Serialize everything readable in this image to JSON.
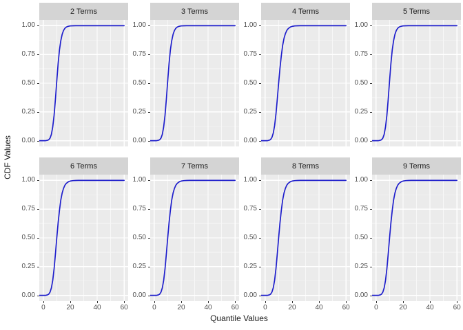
{
  "figure": {
    "y_axis_title": "CDF Values",
    "x_axis_title": "Quantile Values"
  },
  "chart_data": {
    "type": "line",
    "layout": "facet_wrap_4cols_2rows",
    "title": "",
    "xlabel": "Quantile Values",
    "ylabel": "CDF Values",
    "xlim": [
      0,
      60
    ],
    "ylim": [
      0,
      1
    ],
    "axis_expansion": 0.05,
    "grid": true,
    "legend": "none",
    "x_ticks": [
      0,
      20,
      40,
      60
    ],
    "x_tick_labels": [
      "0",
      "20",
      "40",
      "60"
    ],
    "x_minor": [
      10,
      30,
      50
    ],
    "y_ticks": [
      0,
      0.25,
      0.5,
      0.75,
      1
    ],
    "y_tick_labels": [
      "0.00",
      "0.25",
      "0.50",
      "0.75",
      "1.00"
    ],
    "y_minor": [
      0.125,
      0.375,
      0.625,
      0.875
    ],
    "colors": {
      "line": "#1e1ecc",
      "panel_bg": "#ebebeb",
      "strip_bg": "#d4d4d4",
      "grid_major": "#ffffff",
      "grid_minor": "#f7f7f7",
      "tick_text": "#4d4d4d",
      "tick_mark": "#333333",
      "title_text": "#1a1a1a"
    },
    "x": [
      0,
      1,
      2,
      3,
      4,
      5,
      6,
      7,
      8,
      9,
      10,
      11,
      12,
      13,
      14,
      15,
      16,
      17,
      18,
      19,
      20,
      22,
      24,
      26,
      28,
      30,
      35,
      40,
      45,
      50,
      55,
      60
    ],
    "series": [
      {
        "name": "2 Terms",
        "values": [
          0,
          0,
          0.001,
          0.003,
          0.008,
          0.022,
          0.055,
          0.12,
          0.22,
          0.36,
          0.52,
          0.67,
          0.79,
          0.87,
          0.925,
          0.958,
          0.977,
          0.987,
          0.993,
          0.996,
          0.998,
          0.999,
          1,
          1,
          1,
          1,
          1,
          1,
          1,
          1,
          1,
          1
        ]
      },
      {
        "name": "3 Terms",
        "values": [
          0,
          0,
          0.001,
          0.003,
          0.008,
          0.022,
          0.055,
          0.12,
          0.22,
          0.36,
          0.52,
          0.67,
          0.79,
          0.87,
          0.925,
          0.958,
          0.977,
          0.987,
          0.993,
          0.996,
          0.998,
          0.999,
          1,
          1,
          1,
          1,
          1,
          1,
          1,
          1,
          1,
          1
        ]
      },
      {
        "name": "4 Terms",
        "values": [
          0,
          0,
          0.001,
          0.004,
          0.01,
          0.028,
          0.065,
          0.13,
          0.23,
          0.36,
          0.5,
          0.63,
          0.74,
          0.83,
          0.89,
          0.93,
          0.957,
          0.973,
          0.983,
          0.99,
          0.994,
          0.998,
          0.999,
          1,
          1,
          1,
          1,
          1,
          1,
          1,
          1,
          1
        ]
      },
      {
        "name": "5 Terms",
        "values": [
          0,
          0,
          0.001,
          0.003,
          0.008,
          0.022,
          0.055,
          0.12,
          0.22,
          0.36,
          0.52,
          0.67,
          0.79,
          0.87,
          0.925,
          0.958,
          0.977,
          0.987,
          0.993,
          0.996,
          0.998,
          0.999,
          1,
          1,
          1,
          1,
          1,
          1,
          1,
          1,
          1,
          1
        ]
      },
      {
        "name": "6 Terms",
        "values": [
          0,
          0,
          0.001,
          0.004,
          0.01,
          0.028,
          0.065,
          0.13,
          0.23,
          0.36,
          0.5,
          0.63,
          0.74,
          0.83,
          0.89,
          0.93,
          0.957,
          0.973,
          0.983,
          0.99,
          0.994,
          0.998,
          0.999,
          1,
          1,
          1,
          1,
          1,
          1,
          1,
          1,
          1
        ]
      },
      {
        "name": "7 Terms",
        "values": [
          0,
          0,
          0.001,
          0.004,
          0.01,
          0.028,
          0.065,
          0.13,
          0.23,
          0.36,
          0.5,
          0.63,
          0.74,
          0.83,
          0.89,
          0.93,
          0.957,
          0.973,
          0.983,
          0.99,
          0.994,
          0.998,
          0.999,
          1,
          1,
          1,
          1,
          1,
          1,
          1,
          1,
          1
        ]
      },
      {
        "name": "8 Terms",
        "values": [
          0,
          0,
          0.001,
          0.004,
          0.01,
          0.028,
          0.065,
          0.13,
          0.23,
          0.36,
          0.5,
          0.63,
          0.74,
          0.83,
          0.89,
          0.93,
          0.957,
          0.973,
          0.983,
          0.99,
          0.994,
          0.998,
          0.999,
          1,
          1,
          1,
          1,
          1,
          1,
          1,
          1,
          1
        ]
      },
      {
        "name": "9 Terms",
        "values": [
          0,
          0,
          0.001,
          0.004,
          0.01,
          0.028,
          0.065,
          0.13,
          0.23,
          0.36,
          0.5,
          0.63,
          0.74,
          0.83,
          0.89,
          0.93,
          0.957,
          0.973,
          0.983,
          0.99,
          0.994,
          0.998,
          0.999,
          1,
          1,
          1,
          1,
          1,
          1,
          1,
          1,
          1
        ]
      }
    ]
  }
}
